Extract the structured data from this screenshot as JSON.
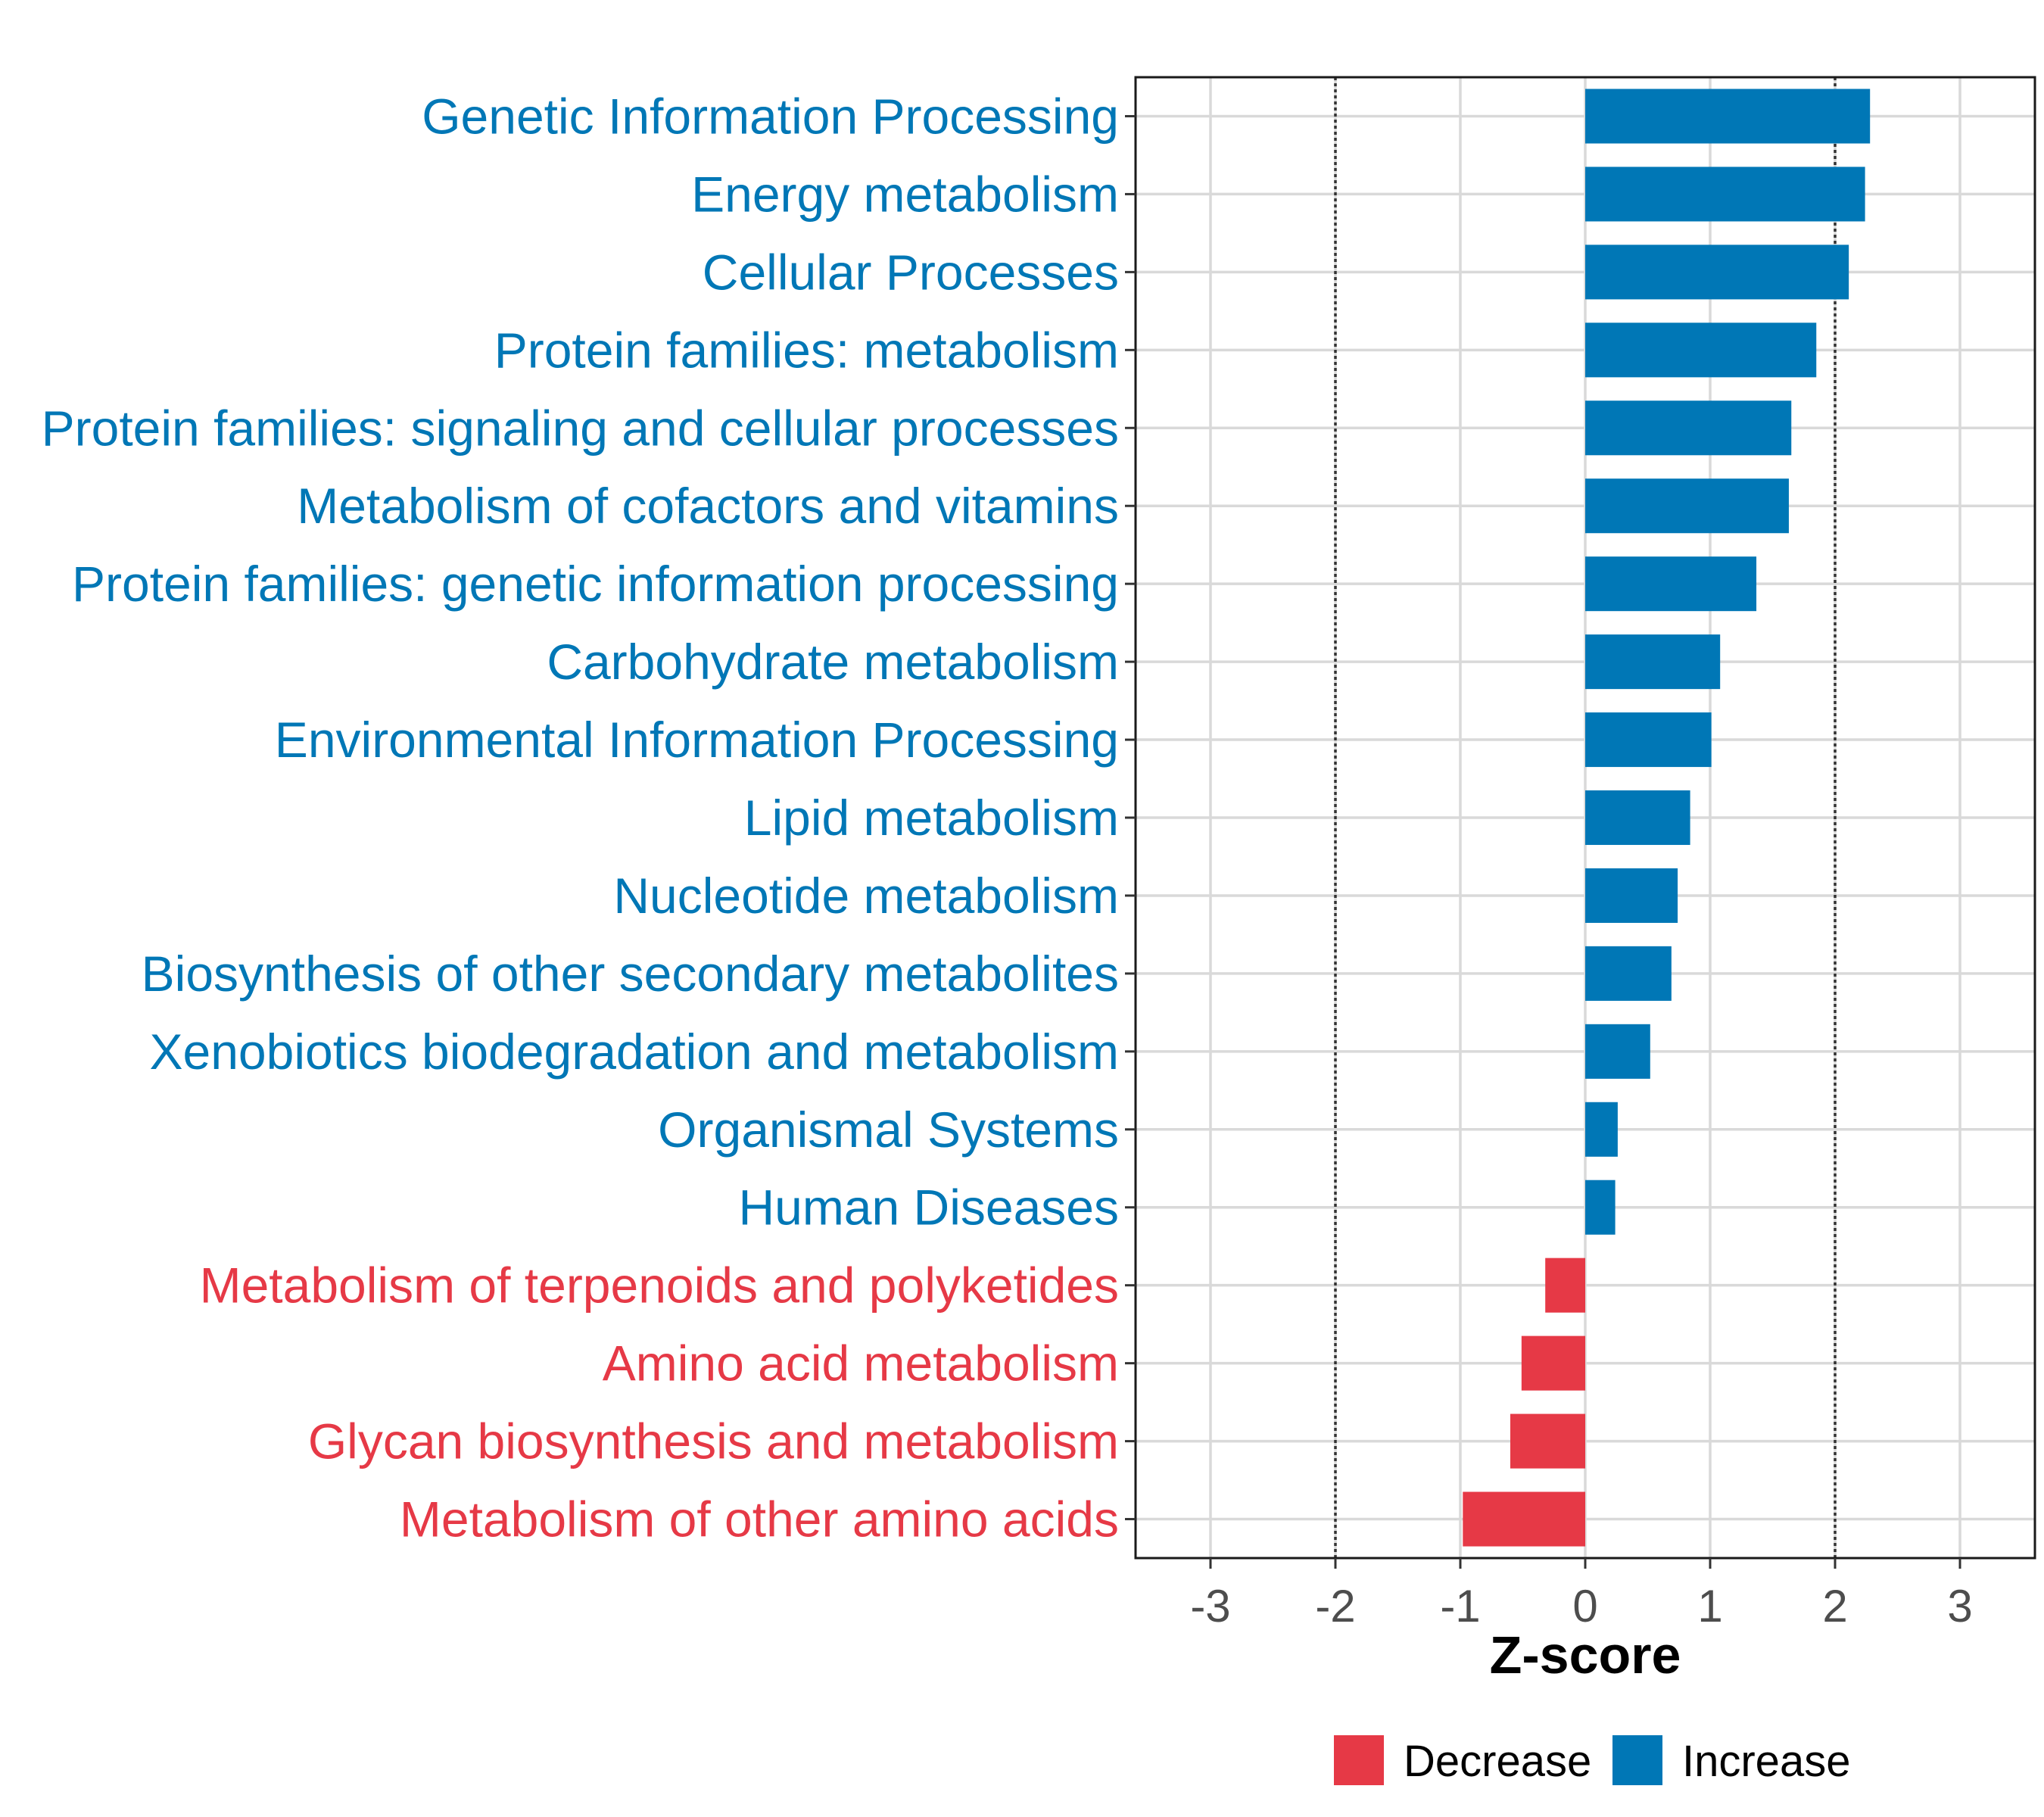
{
  "colors": {
    "decrease": "#E63946",
    "increase": "#0077B6"
  },
  "chart_data": {
    "type": "bar",
    "orientation": "horizontal",
    "xlabel": "Z-score",
    "xlim": [
      -3.6,
      3.6
    ],
    "xticks": [
      -3,
      -2,
      -1,
      0,
      1,
      2,
      3
    ],
    "reference_lines": [
      -2,
      2
    ],
    "grid": true,
    "legend": {
      "position": "bottom",
      "entries": [
        {
          "key": "decrease",
          "label": "Decrease"
        },
        {
          "key": "increase",
          "label": "Increase"
        }
      ]
    },
    "categories": [
      "Genetic Information Processing",
      "Energy metabolism",
      "Cellular Processes",
      "Protein families: metabolism",
      "Protein families: signaling and cellular processes",
      "Metabolism of cofactors and vitamins",
      "Protein families: genetic information processing",
      "Carbohydrate metabolism",
      "Environmental Information Processing",
      "Lipid metabolism",
      "Nucleotide metabolism",
      "Biosynthesis of other secondary metabolites",
      "Xenobiotics biodegradation and metabolism",
      "Organismal Systems",
      "Human Diseases",
      "Metabolism of terpenoids and polyketides",
      "Amino acid metabolism",
      "Glycan biosynthesis and metabolism",
      "Metabolism of other amino acids"
    ],
    "values": [
      2.28,
      2.24,
      2.11,
      1.85,
      1.65,
      1.63,
      1.37,
      1.08,
      1.01,
      0.84,
      0.74,
      0.69,
      0.52,
      0.26,
      0.24,
      -0.32,
      -0.51,
      -0.6,
      -0.98
    ]
  }
}
